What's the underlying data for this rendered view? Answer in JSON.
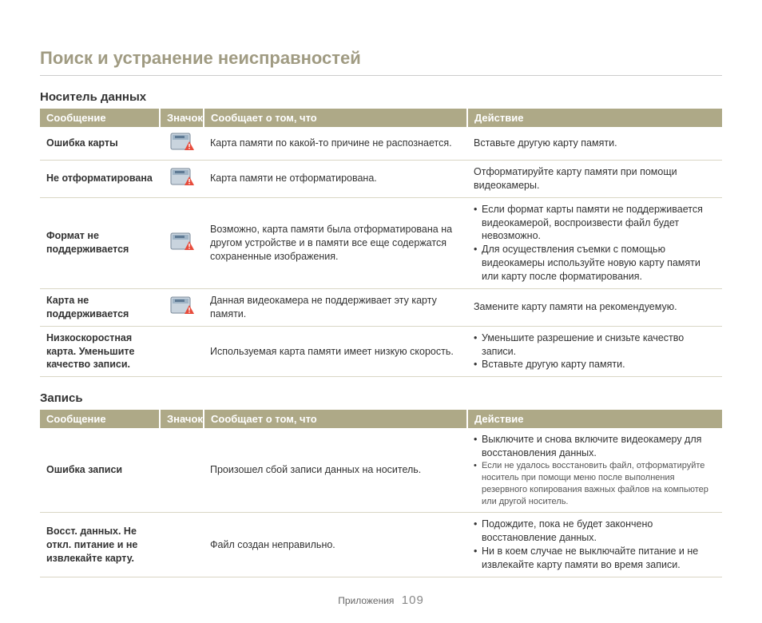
{
  "page": {
    "title": "Поиск и устранение неисправностей",
    "footer_label": "Приложения",
    "page_number": "109"
  },
  "colors": {
    "header_bg": "#aea987",
    "header_text": "#ffffff",
    "title_color": "#a09b82",
    "row_border": "#d9d6c5",
    "text": "#333333"
  },
  "sections": [
    {
      "title": "Носитель данных",
      "columns": [
        "Сообщение",
        "Значок",
        "Сообщает о том, что",
        "Действие"
      ],
      "rows": [
        {
          "message": "Ошибка карты",
          "has_icon": true,
          "about": "Карта памяти по какой-то причине не распознается.",
          "actions": [
            "Вставьте другую карту памяти."
          ]
        },
        {
          "message": "Не отформатирована",
          "has_icon": true,
          "about": "Карта памяти не отформатирована.",
          "actions": [
            "Отформатируйте карту памяти при помощи видеокамеры."
          ]
        },
        {
          "message": "Формат не поддерживается",
          "has_icon": true,
          "about": "Возможно, карта памяти была отформатирована на другом устройстве и в памяти все еще содержатся сохраненные изображения.",
          "actions": [
            "Если формат карты памяти не поддерживается видеокамерой, воспроизвести файл будет невозможно.",
            "Для осуществления съемки с помощью видеокамеры используйте новую карту памяти или карту после форматирования."
          ]
        },
        {
          "message": "Карта не поддерживается",
          "has_icon": true,
          "about": "Данная видеокамера не поддерживает эту карту памяти.",
          "actions": [
            "Замените карту памяти на рекомендуемую."
          ]
        },
        {
          "message": "Низкоскоростная карта. Уменьшите качество записи.",
          "has_icon": false,
          "about": "Используемая карта памяти имеет низкую скорость.",
          "actions": [
            "Уменьшите разрешение и снизьте качество записи.",
            "Вставьте другую карту памяти."
          ]
        }
      ]
    },
    {
      "title": "Запись",
      "columns": [
        "Сообщение",
        "Значок",
        "Сообщает о том, что",
        "Действие"
      ],
      "rows": [
        {
          "message": "Ошибка записи",
          "has_icon": false,
          "about": "Произошел сбой записи данных на носитель.",
          "actions": [
            "Выключите и снова включите видеокамеру для восстановления данных.",
            "Если не удалось восстановить файл, отформатируйте носитель при помощи меню после выполнения резервного копирования важных файлов на компьютер или другой носитель."
          ],
          "action_small_from": 1
        },
        {
          "message": "Восст. данных. Не откл. питание и не извлекайте карту.",
          "has_icon": false,
          "about": "Файл создан неправильно.",
          "actions": [
            "Подождите, пока не будет закончено восстановление данных.",
            "Ни в коем случае не выключайте питание и не извлекайте карту памяти во время записи."
          ]
        }
      ]
    }
  ]
}
